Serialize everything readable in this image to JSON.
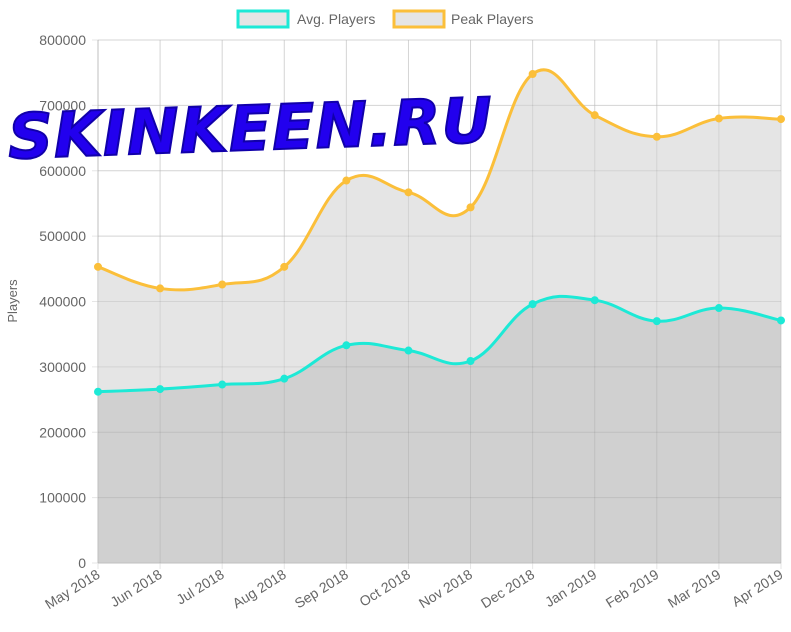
{
  "watermark": {
    "text": "SKINKEEN.RU",
    "color": "#2200ee"
  },
  "chart_data": {
    "type": "area",
    "categories": [
      "May 2018",
      "Jun 2018",
      "Jul 2018",
      "Aug 2018",
      "Sep 2018",
      "Oct 2018",
      "Nov 2018",
      "Dec 2018",
      "Jan 2019",
      "Feb 2019",
      "Mar 2019",
      "Apr 2019"
    ],
    "series": [
      {
        "name": "Avg. Players",
        "color": "#1de9d6",
        "fill": "#cccccc",
        "values": [
          262000,
          266000,
          273000,
          282000,
          333000,
          325000,
          309000,
          396000,
          402000,
          370000,
          390000,
          371000
        ]
      },
      {
        "name": "Peak Players",
        "color": "#fbbf3a",
        "fill": "#e5e5e5",
        "values": [
          453000,
          420000,
          426000,
          453000,
          585000,
          567000,
          544000,
          748000,
          685000,
          652000,
          680000,
          679000
        ]
      }
    ],
    "ylabel": "Players",
    "xlabel": "",
    "ylim": [
      0,
      800000
    ],
    "yticks": [
      "0",
      "100000",
      "200000",
      "300000",
      "400000",
      "500000",
      "600000",
      "700000",
      "800000"
    ],
    "grid": true,
    "legend_position": "top-center"
  }
}
